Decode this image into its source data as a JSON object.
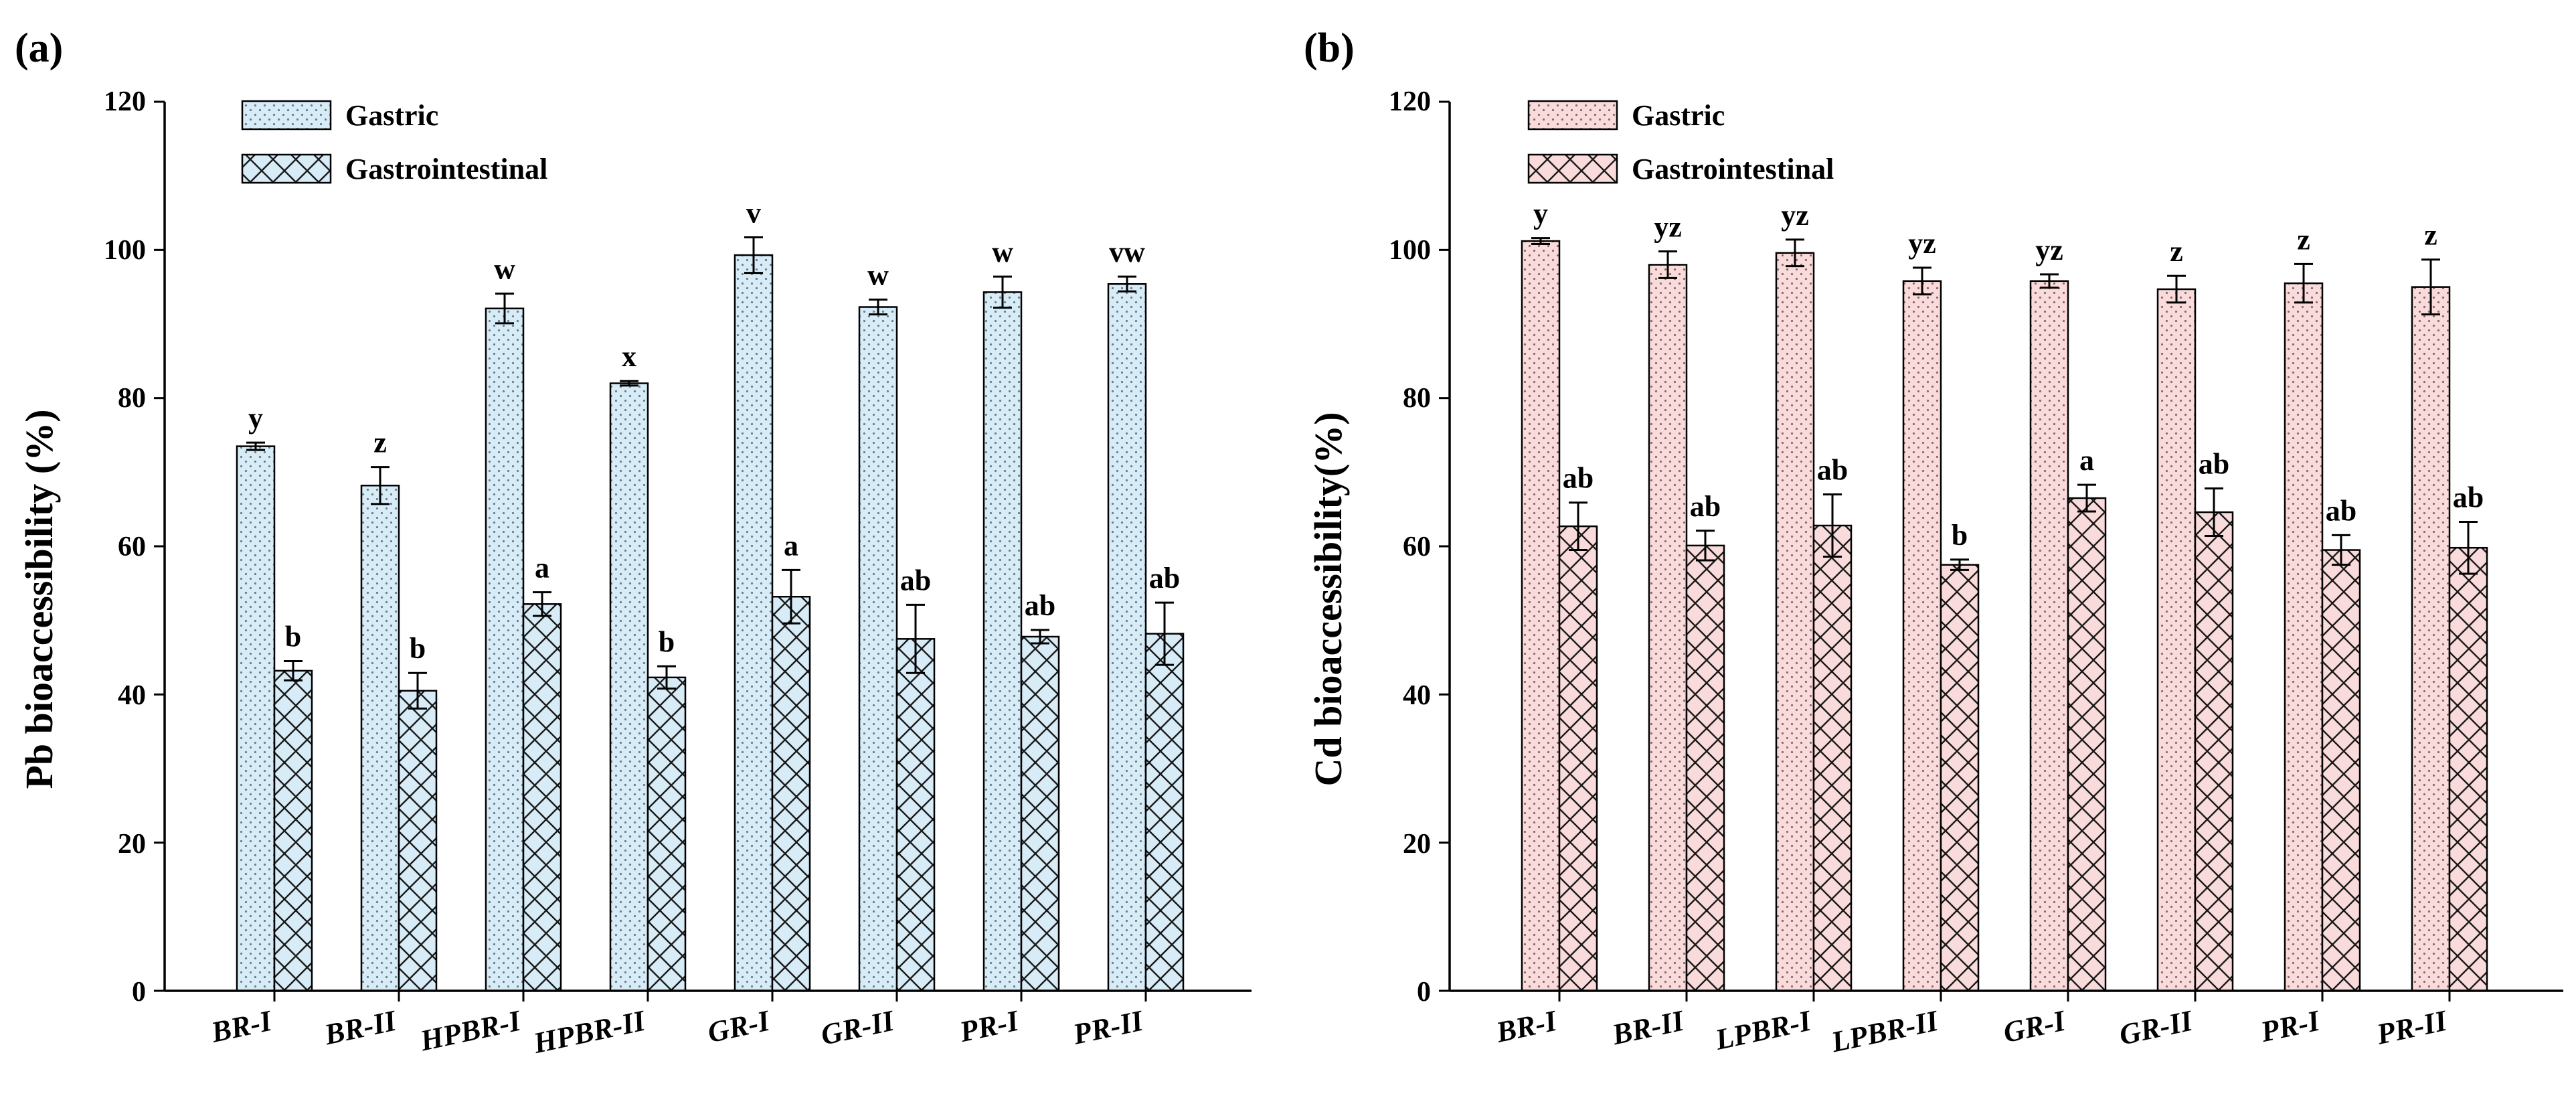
{
  "chart_data": [
    {
      "type": "bar",
      "panel_label": "(a)",
      "ylabel": "Pb bioaccessibility (%)",
      "xlabel": "",
      "ylim": [
        0,
        120
      ],
      "yticks": [
        0,
        20,
        40,
        60,
        80,
        100,
        120
      ],
      "legend": {
        "position": "top-left",
        "entries": [
          "Gastric",
          "Gastrointestinal"
        ]
      },
      "fill_color": "#d7ecf7",
      "categories": [
        "BR-I",
        "BR-II",
        "HPBR-I",
        "HPBR-II",
        "GR-I",
        "GR-II",
        "PR-I",
        "PR-II"
      ],
      "series": [
        {
          "name": "Gastric",
          "pattern": "dots",
          "values": [
            73.5,
            68.2,
            92.1,
            82.0,
            99.3,
            92.3,
            94.3,
            95.4
          ],
          "errors": [
            0.5,
            2.5,
            2.0,
            0.3,
            2.4,
            1.0,
            2.1,
            1.0
          ],
          "letters": [
            "y",
            "z",
            "w",
            "x",
            "v",
            "w",
            "w",
            "vw"
          ]
        },
        {
          "name": "Gastrointestinal",
          "pattern": "crosshatch",
          "values": [
            43.2,
            40.5,
            52.2,
            42.3,
            53.2,
            47.5,
            47.8,
            48.2
          ],
          "errors": [
            1.3,
            2.4,
            1.6,
            1.5,
            3.6,
            4.6,
            0.9,
            4.2
          ],
          "letters": [
            "b",
            "b",
            "a",
            "b",
            "a",
            "ab",
            "ab",
            "ab"
          ]
        }
      ]
    },
    {
      "type": "bar",
      "panel_label": "(b)",
      "ylabel": "Cd bioaccessibility(%)",
      "xlabel": "",
      "ylim": [
        0,
        120
      ],
      "yticks": [
        0,
        20,
        40,
        60,
        80,
        100,
        120
      ],
      "legend": {
        "position": "top-left",
        "entries": [
          "Gastric",
          "Gastrointestinal"
        ]
      },
      "fill_color": "#fadbdb",
      "categories": [
        "BR-I",
        "BR-II",
        "LPBR-I",
        "LPBR-II",
        "GR-I",
        "GR-II",
        "PR-I",
        "PR-II"
      ],
      "series": [
        {
          "name": "Gastric",
          "pattern": "dots",
          "values": [
            101.2,
            98.0,
            99.6,
            95.8,
            95.8,
            94.7,
            95.5,
            95.0
          ],
          "errors": [
            0.4,
            1.8,
            1.8,
            1.8,
            0.9,
            1.8,
            2.6,
            3.7
          ],
          "letters": [
            "y",
            "yz",
            "yz",
            "yz",
            "yz",
            "z",
            "z",
            "z"
          ]
        },
        {
          "name": "Gastrointestinal",
          "pattern": "crosshatch",
          "values": [
            62.7,
            60.1,
            62.8,
            57.5,
            66.5,
            64.6,
            59.5,
            59.8
          ],
          "errors": [
            3.2,
            2.0,
            4.2,
            0.7,
            1.8,
            3.2,
            2.0,
            3.5
          ],
          "letters": [
            "ab",
            "ab",
            "ab",
            "b",
            "a",
            "ab",
            "ab",
            "ab"
          ]
        }
      ]
    }
  ]
}
